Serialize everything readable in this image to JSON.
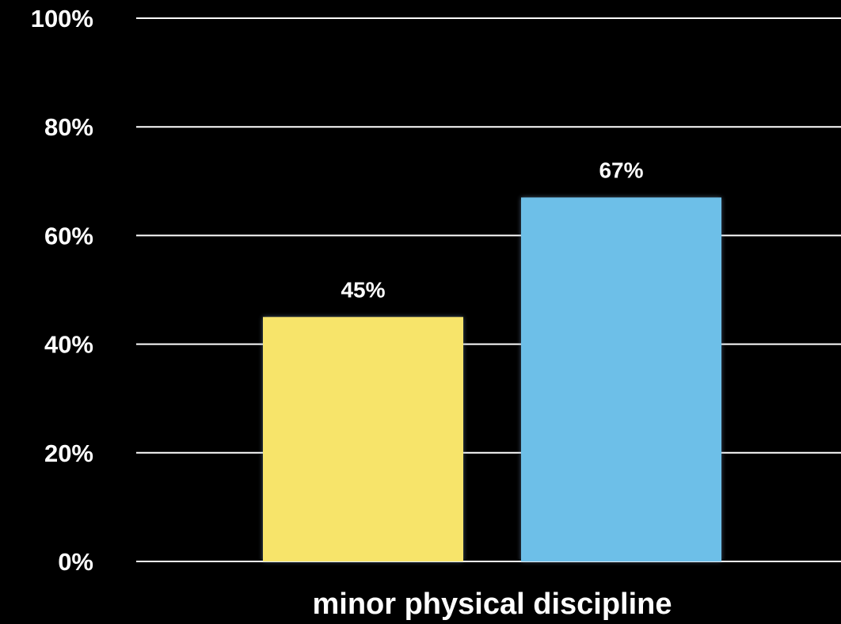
{
  "chart_data": {
    "type": "bar",
    "categories": [
      "minor physical discipline"
    ],
    "series": [
      {
        "values": [
          45
        ],
        "color": "#f7e46b"
      },
      {
        "values": [
          67
        ],
        "color": "#6dbfe8"
      }
    ],
    "data_labels": [
      "45%",
      "67%"
    ],
    "yticks": [
      {
        "value": 0,
        "label": "0%"
      },
      {
        "value": 20,
        "label": "20%"
      },
      {
        "value": 40,
        "label": "40%"
      },
      {
        "value": 60,
        "label": "60%"
      },
      {
        "value": 80,
        "label": "80%"
      },
      {
        "value": 100,
        "label": "100%"
      }
    ],
    "ylim": [
      0,
      100
    ],
    "grid": true,
    "background": "#000000",
    "grid_color": "#ffffff",
    "text_color": "#ffffff"
  }
}
